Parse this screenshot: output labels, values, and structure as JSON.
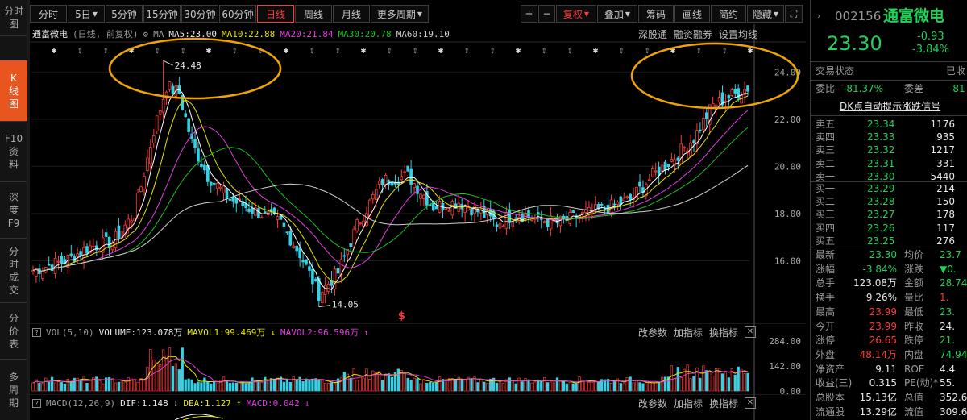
{
  "left_nav": [
    {
      "label": "分时\n图",
      "active": false
    },
    {
      "label": "K\n线\n图",
      "active": true
    },
    {
      "label": "F10\n资\n料",
      "active": false
    },
    {
      "label": "深\n度\nF9",
      "active": false
    },
    {
      "label": "分\n时\n成\n交",
      "active": false
    },
    {
      "label": "分\n价\n表",
      "active": false
    },
    {
      "label": "多\n周\n期",
      "active": false
    }
  ],
  "toolbar": {
    "periods": [
      "分时",
      "5日",
      "5分钟",
      "15分钟",
      "30分钟",
      "60分钟",
      "日线",
      "周线",
      "月线",
      "更多周期"
    ],
    "active_period": "日线",
    "plus": "+",
    "minus": "−",
    "fuquan": "复权",
    "overlay": "叠加",
    "chips": "筹码",
    "draw": "画线",
    "simple": "简约",
    "hide": "隐藏"
  },
  "main": {
    "stock_name": "通富微电",
    "period_desc": "(日线, 前复权)",
    "ma_label": "MA",
    "ma5": "MA5:23.00",
    "ma10": "MA10:22.88",
    "ma20": "MA20:21.84",
    "ma30": "MA30:20.78",
    "ma60": "MA60:19.10",
    "right_links": [
      "深股通",
      "融资融券",
      "设置均线"
    ],
    "high_label": "24.48",
    "low_label": "14.05",
    "event_marker": "$",
    "y_ticks": [
      "24.00",
      "22.00",
      "20.00",
      "18.00",
      "16.00"
    ],
    "colors": {
      "up": "#ff3a3a",
      "down": "#35d2e6",
      "ma5": "#ffffff",
      "ma10": "#e6e600",
      "ma20": "#e040e0",
      "ma30": "#20c020",
      "ma60": "#d0d0d0",
      "highlight": "#f0a400"
    }
  },
  "volume": {
    "title": "VOL(5,10)",
    "volume": "VOLUME:123.078万",
    "mavol1": "MAVOL1:99.469万",
    "mavol2": "MAVOL2:96.596万",
    "buttons": [
      "改参数",
      "加指标",
      "换指标"
    ],
    "y_ticks": [
      "284.00",
      "142.00",
      "0.00"
    ]
  },
  "macd": {
    "title": "MACD(12,26,9)",
    "dif": "DIF:1.148",
    "dea": "DEA:1.127",
    "macd": "MACD:0.042",
    "buttons": [
      "改参数",
      "加指标",
      "换指标"
    ]
  },
  "right_panel": {
    "code": "002156",
    "name": "通富微电",
    "price": "23.30",
    "change": "-0.93",
    "change_pct": "-3.84%",
    "status_label": "交易状态",
    "status_value": "已收",
    "weibi_label": "委比",
    "weibi_value": "-81.37%",
    "weicha_label": "委差",
    "weicha_value": "-81",
    "signal_link": "DK点自动提示涨跌信号",
    "asks": [
      {
        "label": "卖五",
        "price": "23.34",
        "vol": "1176"
      },
      {
        "label": "卖四",
        "price": "23.33",
        "vol": "935"
      },
      {
        "label": "卖三",
        "price": "23.32",
        "vol": "1217"
      },
      {
        "label": "卖二",
        "price": "23.31",
        "vol": "331"
      },
      {
        "label": "卖一",
        "price": "23.30",
        "vol": "5440"
      }
    ],
    "bids": [
      {
        "label": "买一",
        "price": "23.29",
        "vol": "214"
      },
      {
        "label": "买二",
        "price": "23.28",
        "vol": "150"
      },
      {
        "label": "买三",
        "price": "23.27",
        "vol": "178"
      },
      {
        "label": "买四",
        "price": "23.26",
        "vol": "117"
      },
      {
        "label": "买五",
        "price": "23.25",
        "vol": "276"
      }
    ],
    "stats": [
      {
        "l1": "最新",
        "v1": "23.30",
        "c1": "dn",
        "l2": "均价",
        "v2": "23.7",
        "c2": "dn"
      },
      {
        "l1": "涨幅",
        "v1": "-3.84%",
        "c1": "dn",
        "l2": "涨跌",
        "v2": "▼0.",
        "c2": "dn"
      },
      {
        "l1": "总手",
        "v1": "123.08万",
        "c1": "wh",
        "l2": "金额",
        "v2": "28.74",
        "c2": "dn"
      },
      {
        "l1": "换手",
        "v1": "9.26%",
        "c1": "wh",
        "l2": "量比",
        "v2": "1.",
        "c2": "up"
      },
      {
        "l1": "最高",
        "v1": "23.99",
        "c1": "up",
        "l2": "最低",
        "v2": "23.",
        "c2": "dn"
      },
      {
        "l1": "今开",
        "v1": "23.99",
        "c1": "up",
        "l2": "昨收",
        "v2": "24.",
        "c2": "wh"
      },
      {
        "l1": "涨停",
        "v1": "26.65",
        "c1": "up",
        "l2": "跌停",
        "v2": "21.",
        "c2": "dn"
      },
      {
        "l1": "外盘",
        "v1": "48.14万",
        "c1": "up",
        "l2": "内盘",
        "v2": "74.94",
        "c2": "dn"
      },
      {
        "l1": "净资产",
        "v1": "9.11",
        "c1": "wh",
        "l2": "ROE",
        "v2": "4.4",
        "c2": "wh"
      },
      {
        "l1": "收益(三)",
        "v1": "0.315",
        "c1": "wh",
        "l2": "PE(动)*",
        "v2": "55.",
        "c2": "wh"
      },
      {
        "l1": "总股本",
        "v1": "15.13亿",
        "c1": "wh",
        "l2": "总值",
        "v2": "352.6",
        "c2": "wh"
      },
      {
        "l1": "流通股",
        "v1": "13.29亿",
        "c1": "wh",
        "l2": "流值",
        "v2": "309.6",
        "c2": "wh"
      }
    ]
  }
}
